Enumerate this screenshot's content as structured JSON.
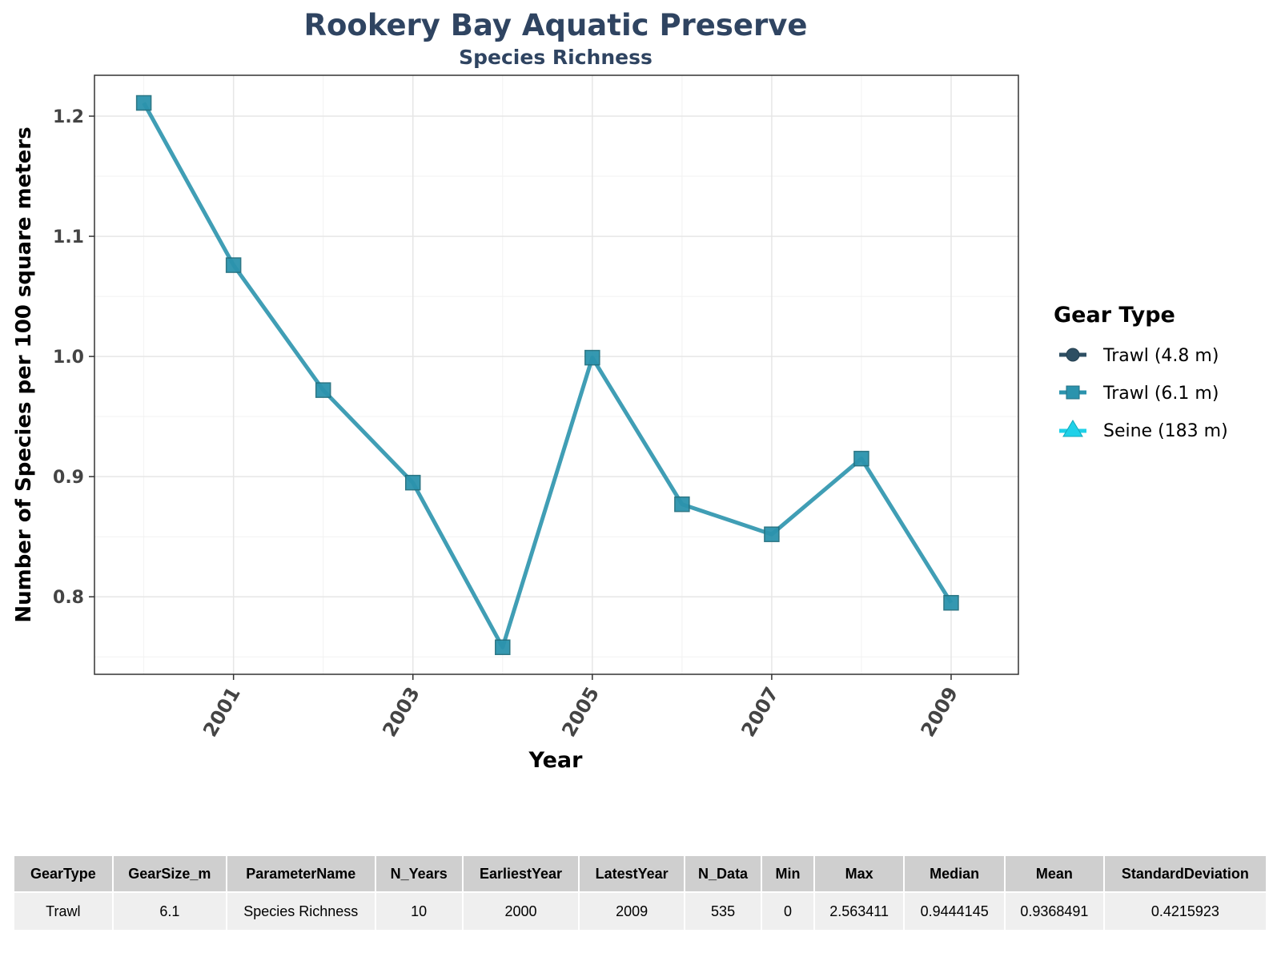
{
  "chart_data": {
    "type": "line",
    "title": "Rookery Bay Aquatic Preserve",
    "subtitle": "Species Richness",
    "xlabel": "Year",
    "ylabel": "Number of Species per 100 square meters",
    "xlim": [
      1999.45,
      2009.75
    ],
    "ylim": [
      0.7355,
      1.234
    ],
    "x_ticks": [
      2001,
      2003,
      2005,
      2007,
      2009
    ],
    "x_tick_labels": [
      "2001",
      "2003",
      "2005",
      "2007",
      "2009"
    ],
    "y_ticks": [
      0.8,
      0.9,
      1.0,
      1.1,
      1.2
    ],
    "y_tick_labels": [
      "0.8",
      "0.9",
      "1.0",
      "1.1",
      "1.2"
    ],
    "grid": true,
    "legend_title": "Gear Type",
    "legend_placement": "right",
    "legend": [
      {
        "label": "Trawl (4.8 m)",
        "shape": "circle",
        "color": "#2e4f63"
      },
      {
        "label": "Trawl (6.1 m)",
        "shape": "square",
        "color": "#2b93ad"
      },
      {
        "label": "Seine (183 m)",
        "shape": "triangle",
        "color": "#1fd1e8"
      }
    ],
    "series": [
      {
        "name": "Trawl (6.1 m)",
        "color": "#2b93ad",
        "marker": "square",
        "x": [
          2000,
          2001,
          2002,
          2003,
          2004,
          2005,
          2006,
          2007,
          2008,
          2009
        ],
        "y": [
          1.211,
          1.076,
          0.972,
          0.895,
          0.758,
          0.999,
          0.877,
          0.852,
          0.915,
          0.795
        ]
      }
    ]
  },
  "table": {
    "headers": [
      "GearType",
      "GearSize_m",
      "ParameterName",
      "N_Years",
      "EarliestYear",
      "LatestYear",
      "N_Data",
      "Min",
      "Max",
      "Median",
      "Mean",
      "StandardDeviation"
    ],
    "rows": [
      [
        "Trawl",
        "6.1",
        "Species Richness",
        "10",
        "2000",
        "2009",
        "535",
        "0",
        "2.563411",
        "0.9444145",
        "0.9368491",
        "0.4215923"
      ]
    ]
  }
}
